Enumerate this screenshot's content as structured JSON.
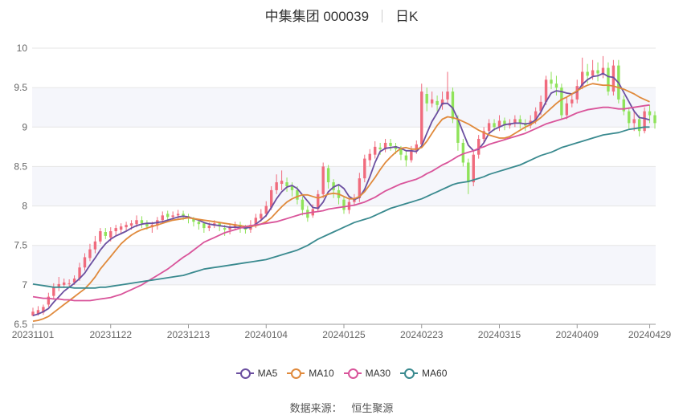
{
  "header": {
    "title": "中集集团 000039",
    "period": "日K"
  },
  "source": {
    "label": "数据来源：",
    "value": "恒生聚源"
  },
  "colors": {
    "up": "#f06b7d",
    "down": "#8fe35a",
    "grid": "#e6e6e6",
    "band": "#f5f6fb",
    "axis": "#666666"
  },
  "chart_data": {
    "type": "candlestick",
    "ylim": [
      6.5,
      10.0
    ],
    "yticks": [
      "6.5",
      "7",
      "7.5",
      "8",
      "8.5",
      "9",
      "9.5",
      "10"
    ],
    "xticks": [
      {
        "label": "20231101",
        "index": 0
      },
      {
        "label": "20231122",
        "index": 15
      },
      {
        "label": "20231213",
        "index": 30
      },
      {
        "label": "20240104",
        "index": 45
      },
      {
        "label": "20240125",
        "index": 60
      },
      {
        "label": "20240223",
        "index": 75
      },
      {
        "label": "20240315",
        "index": 90
      },
      {
        "label": "20240409",
        "index": 105
      },
      {
        "label": "20240429",
        "index": 119
      }
    ],
    "candles": [
      [
        6.61,
        6.66,
        6.6,
        6.71
      ],
      [
        6.63,
        6.68,
        6.61,
        6.73
      ],
      [
        6.65,
        6.72,
        6.62,
        6.75
      ],
      [
        6.75,
        6.85,
        6.72,
        6.9
      ],
      [
        6.86,
        6.97,
        6.82,
        7.02
      ],
      [
        6.97,
        7.01,
        6.92,
        7.1
      ],
      [
        7.0,
        7.03,
        6.96,
        7.08
      ],
      [
        7.01,
        7.02,
        6.97,
        7.07
      ],
      [
        7.03,
        7.08,
        7.0,
        7.12
      ],
      [
        7.08,
        7.22,
        7.05,
        7.28
      ],
      [
        7.22,
        7.35,
        7.18,
        7.4
      ],
      [
        7.34,
        7.45,
        7.3,
        7.52
      ],
      [
        7.45,
        7.55,
        7.4,
        7.62
      ],
      [
        7.55,
        7.68,
        7.52,
        7.72
      ],
      [
        7.67,
        7.62,
        7.58,
        7.72
      ],
      [
        7.6,
        7.68,
        7.55,
        7.73
      ],
      [
        7.68,
        7.72,
        7.62,
        7.76
      ],
      [
        7.7,
        7.74,
        7.65,
        7.78
      ],
      [
        7.73,
        7.76,
        7.68,
        7.8
      ],
      [
        7.75,
        7.78,
        7.7,
        7.82
      ],
      [
        7.77,
        7.82,
        7.73,
        7.88
      ],
      [
        7.82,
        7.78,
        7.72,
        7.87
      ],
      [
        7.78,
        7.74,
        7.7,
        7.82
      ],
      [
        7.73,
        7.76,
        7.66,
        7.8
      ],
      [
        7.75,
        7.82,
        7.7,
        7.86
      ],
      [
        7.82,
        7.88,
        7.78,
        7.93
      ],
      [
        7.9,
        7.86,
        7.8,
        7.94
      ],
      [
        7.86,
        7.88,
        7.82,
        7.93
      ],
      [
        7.88,
        7.9,
        7.84,
        7.95
      ],
      [
        7.9,
        7.87,
        7.82,
        7.94
      ],
      [
        7.87,
        7.84,
        7.78,
        7.9
      ],
      [
        7.84,
        7.8,
        7.74,
        7.86
      ],
      [
        7.8,
        7.77,
        7.7,
        7.83
      ],
      [
        7.78,
        7.72,
        7.66,
        7.8
      ],
      [
        7.72,
        7.75,
        7.68,
        7.79
      ],
      [
        7.75,
        7.78,
        7.72,
        7.82
      ],
      [
        7.78,
        7.74,
        7.68,
        7.8
      ],
      [
        7.72,
        7.7,
        7.62,
        7.76
      ],
      [
        7.7,
        7.74,
        7.64,
        7.78
      ],
      [
        7.73,
        7.77,
        7.7,
        7.8
      ],
      [
        7.76,
        7.72,
        7.66,
        7.8
      ],
      [
        7.72,
        7.7,
        7.65,
        7.76
      ],
      [
        7.7,
        7.76,
        7.66,
        7.82
      ],
      [
        7.76,
        7.85,
        7.72,
        7.9
      ],
      [
        7.84,
        7.9,
        7.8,
        7.96
      ],
      [
        7.9,
        8.0,
        7.86,
        8.06
      ],
      [
        7.98,
        8.2,
        7.95,
        8.25
      ],
      [
        8.2,
        8.3,
        8.15,
        8.4
      ],
      [
        8.28,
        8.32,
        8.2,
        8.45
      ],
      [
        8.3,
        8.25,
        8.18,
        8.36
      ],
      [
        8.25,
        8.2,
        8.12,
        8.3
      ],
      [
        8.2,
        8.08,
        8.02,
        8.25
      ],
      [
        8.08,
        7.95,
        7.88,
        8.12
      ],
      [
        7.95,
        7.85,
        7.8,
        8.0
      ],
      [
        7.88,
        7.96,
        7.85,
        8.02
      ],
      [
        7.96,
        8.15,
        7.92,
        8.2
      ],
      [
        8.15,
        8.5,
        8.1,
        8.55
      ],
      [
        8.48,
        8.3,
        8.22,
        8.52
      ],
      [
        8.3,
        8.2,
        8.1,
        8.34
      ],
      [
        8.2,
        8.1,
        8.02,
        8.26
      ],
      [
        8.08,
        7.95,
        7.9,
        8.12
      ],
      [
        7.95,
        8.05,
        7.9,
        8.1
      ],
      [
        8.05,
        8.1,
        8.0,
        8.15
      ],
      [
        8.1,
        8.35,
        8.05,
        8.42
      ],
      [
        8.35,
        8.6,
        8.3,
        8.65
      ],
      [
        8.58,
        8.66,
        8.5,
        8.72
      ],
      [
        8.65,
        8.75,
        8.6,
        8.82
      ],
      [
        8.74,
        8.72,
        8.65,
        8.8
      ],
      [
        8.72,
        8.8,
        8.68,
        8.85
      ],
      [
        8.8,
        8.76,
        8.7,
        8.85
      ],
      [
        8.76,
        8.72,
        8.66,
        8.8
      ],
      [
        8.72,
        8.65,
        8.58,
        8.76
      ],
      [
        8.64,
        8.58,
        8.5,
        8.7
      ],
      [
        8.58,
        8.7,
        8.55,
        8.76
      ],
      [
        8.7,
        8.78,
        8.66,
        8.83
      ],
      [
        8.78,
        9.45,
        8.75,
        9.55
      ],
      [
        9.42,
        9.3,
        9.2,
        9.5
      ],
      [
        9.3,
        9.35,
        9.25,
        9.45
      ],
      [
        9.33,
        9.28,
        9.2,
        9.4
      ],
      [
        9.28,
        9.35,
        9.22,
        9.45
      ],
      [
        9.35,
        9.45,
        9.3,
        9.7
      ],
      [
        9.45,
        9.1,
        9.05,
        9.5
      ],
      [
        9.1,
        8.8,
        8.7,
        9.15
      ],
      [
        8.8,
        8.55,
        8.5,
        8.85
      ],
      [
        8.55,
        8.3,
        8.15,
        8.6
      ],
      [
        8.3,
        8.65,
        8.25,
        8.7
      ],
      [
        8.65,
        8.85,
        8.6,
        8.9
      ],
      [
        8.85,
        8.95,
        8.8,
        9.0
      ],
      [
        8.95,
        9.05,
        8.9,
        9.1
      ],
      [
        9.05,
        9.0,
        8.95,
        9.1
      ],
      [
        9.0,
        9.08,
        8.95,
        9.15
      ],
      [
        9.08,
        9.02,
        8.96,
        9.12
      ],
      [
        9.02,
        9.05,
        8.98,
        9.1
      ],
      [
        9.05,
        9.1,
        9.0,
        9.15
      ],
      [
        9.1,
        9.05,
        8.98,
        9.15
      ],
      [
        9.05,
        9.02,
        8.95,
        9.1
      ],
      [
        9.02,
        9.08,
        8.98,
        9.15
      ],
      [
        9.08,
        9.2,
        9.04,
        9.25
      ],
      [
        9.2,
        9.32,
        9.15,
        9.4
      ],
      [
        9.32,
        9.6,
        9.28,
        9.65
      ],
      [
        9.6,
        9.55,
        9.48,
        9.7
      ],
      [
        9.55,
        9.5,
        9.4,
        9.65
      ],
      [
        9.5,
        9.15,
        9.1,
        9.55
      ],
      [
        9.15,
        9.3,
        9.1,
        9.38
      ],
      [
        9.3,
        9.35,
        9.25,
        9.42
      ],
      [
        9.35,
        9.52,
        9.3,
        9.6
      ],
      [
        9.52,
        9.7,
        9.48,
        9.88
      ],
      [
        9.7,
        9.65,
        9.55,
        9.8
      ],
      [
        9.65,
        9.72,
        9.6,
        9.85
      ],
      [
        9.72,
        9.68,
        9.58,
        9.82
      ],
      [
        9.68,
        9.75,
        9.62,
        9.9
      ],
      [
        9.75,
        9.45,
        9.4,
        9.82
      ],
      [
        9.45,
        9.78,
        9.4,
        9.85
      ],
      [
        9.78,
        9.35,
        9.3,
        9.85
      ],
      [
        9.35,
        9.2,
        9.15,
        9.4
      ],
      [
        9.2,
        9.05,
        8.98,
        9.25
      ],
      [
        9.05,
        9.1,
        8.95,
        9.2
      ],
      [
        9.1,
        8.95,
        8.88,
        9.15
      ],
      [
        8.95,
        9.2,
        8.92,
        9.25
      ],
      [
        9.2,
        9.15,
        9.05,
        9.28
      ],
      [
        9.15,
        9.05,
        8.98,
        9.2
      ]
    ],
    "series": [
      {
        "name": "MA5",
        "color": "#6b4fa0",
        "values": [
          6.61,
          6.63,
          6.66,
          6.7,
          6.78,
          6.85,
          6.92,
          6.97,
          7.02,
          7.08,
          7.15,
          7.25,
          7.34,
          7.44,
          7.52,
          7.58,
          7.62,
          7.65,
          7.68,
          7.72,
          7.75,
          7.77,
          7.78,
          7.78,
          7.79,
          7.8,
          7.82,
          7.84,
          7.86,
          7.87,
          7.86,
          7.84,
          7.82,
          7.79,
          7.77,
          7.76,
          7.75,
          7.74,
          7.73,
          7.73,
          7.73,
          7.72,
          7.73,
          7.77,
          7.82,
          7.88,
          7.98,
          8.09,
          8.18,
          8.24,
          8.26,
          8.22,
          8.14,
          8.06,
          7.98,
          7.97,
          8.05,
          8.18,
          8.24,
          8.27,
          8.22,
          8.12,
          8.08,
          8.11,
          8.21,
          8.37,
          8.55,
          8.69,
          8.73,
          8.74,
          8.75,
          8.73,
          8.7,
          8.7,
          8.69,
          8.76,
          8.92,
          9.07,
          9.18,
          9.3,
          9.3,
          9.24,
          9.1,
          8.93,
          8.77,
          8.7,
          8.72,
          8.8,
          8.92,
          8.97,
          9.0,
          9.03,
          9.04,
          9.05,
          9.05,
          9.04,
          9.05,
          9.09,
          9.19,
          9.32,
          9.43,
          9.46,
          9.45,
          9.43,
          9.42,
          9.45,
          9.54,
          9.6,
          9.64,
          9.65,
          9.68,
          9.64,
          9.63,
          9.56,
          9.44,
          9.32,
          9.2,
          9.12,
          9.11,
          9.09
        ]
      },
      {
        "name": "MA10",
        "color": "#e08a3c",
        "values": [
          6.54,
          6.55,
          6.57,
          6.6,
          6.65,
          6.7,
          6.75,
          6.8,
          6.85,
          6.9,
          6.95,
          7.02,
          7.1,
          7.2,
          7.28,
          7.36,
          7.44,
          7.52,
          7.58,
          7.63,
          7.67,
          7.7,
          7.72,
          7.74,
          7.76,
          7.78,
          7.8,
          7.82,
          7.83,
          7.84,
          7.85,
          7.84,
          7.83,
          7.82,
          7.81,
          7.8,
          7.79,
          7.78,
          7.77,
          7.76,
          7.75,
          7.74,
          7.74,
          7.75,
          7.77,
          7.8,
          7.85,
          7.92,
          7.99,
          8.05,
          8.09,
          8.12,
          8.14,
          8.14,
          8.12,
          8.1,
          8.12,
          8.15,
          8.16,
          8.15,
          8.12,
          8.09,
          8.09,
          8.12,
          8.18,
          8.27,
          8.36,
          8.46,
          8.55,
          8.62,
          8.68,
          8.73,
          8.74,
          8.72,
          8.72,
          8.74,
          8.82,
          8.92,
          9.02,
          9.1,
          9.13,
          9.12,
          9.1,
          9.07,
          9.04,
          9.0,
          8.96,
          8.93,
          8.9,
          8.88,
          8.86,
          8.86,
          8.88,
          8.92,
          8.96,
          9.0,
          9.03,
          9.07,
          9.12,
          9.18,
          9.24,
          9.3,
          9.35,
          9.38,
          9.42,
          9.46,
          9.5,
          9.53,
          9.55,
          9.54,
          9.53,
          9.53,
          9.52,
          9.5,
          9.48,
          9.45,
          9.42,
          9.38,
          9.35,
          9.32
        ]
      },
      {
        "name": "MA30",
        "color": "#d9549a",
        "values": [
          6.85,
          6.84,
          6.83,
          6.83,
          6.82,
          6.82,
          6.81,
          6.81,
          6.8,
          6.8,
          6.8,
          6.8,
          6.81,
          6.82,
          6.83,
          6.84,
          6.86,
          6.88,
          6.91,
          6.94,
          6.97,
          7.0,
          7.04,
          7.08,
          7.12,
          7.16,
          7.2,
          7.25,
          7.3,
          7.35,
          7.39,
          7.44,
          7.49,
          7.54,
          7.57,
          7.6,
          7.63,
          7.66,
          7.68,
          7.7,
          7.72,
          7.74,
          7.75,
          7.76,
          7.77,
          7.78,
          7.79,
          7.8,
          7.82,
          7.84,
          7.86,
          7.88,
          7.9,
          7.91,
          7.92,
          7.93,
          7.94,
          7.96,
          7.97,
          7.98,
          7.99,
          8.0,
          8.01,
          8.03,
          8.05,
          8.08,
          8.11,
          8.15,
          8.19,
          8.22,
          8.25,
          8.28,
          8.3,
          8.32,
          8.34,
          8.37,
          8.41,
          8.44,
          8.48,
          8.52,
          8.55,
          8.59,
          8.63,
          8.66,
          8.68,
          8.7,
          8.73,
          8.75,
          8.78,
          8.8,
          8.82,
          8.84,
          8.86,
          8.88,
          8.9,
          8.92,
          8.95,
          8.98,
          9.01,
          9.04,
          9.06,
          9.08,
          9.1,
          9.12,
          9.15,
          9.18,
          9.2,
          9.22,
          9.23,
          9.24,
          9.25,
          9.25,
          9.24,
          9.23,
          9.23,
          9.24,
          9.25,
          9.26,
          9.27,
          9.28
        ]
      },
      {
        "name": "MA60",
        "color": "#3a8a8f",
        "values": [
          7.01,
          7.0,
          6.99,
          6.98,
          6.97,
          6.97,
          6.97,
          6.97,
          6.96,
          6.96,
          6.96,
          6.96,
          6.96,
          6.97,
          6.97,
          6.98,
          6.99,
          7.0,
          7.01,
          7.02,
          7.03,
          7.04,
          7.05,
          7.06,
          7.07,
          7.08,
          7.09,
          7.1,
          7.11,
          7.12,
          7.14,
          7.16,
          7.18,
          7.2,
          7.21,
          7.22,
          7.23,
          7.24,
          7.25,
          7.26,
          7.27,
          7.28,
          7.29,
          7.3,
          7.31,
          7.32,
          7.34,
          7.36,
          7.38,
          7.4,
          7.42,
          7.44,
          7.47,
          7.5,
          7.54,
          7.58,
          7.61,
          7.64,
          7.67,
          7.7,
          7.73,
          7.76,
          7.79,
          7.81,
          7.83,
          7.85,
          7.88,
          7.91,
          7.94,
          7.97,
          7.99,
          8.01,
          8.03,
          8.05,
          8.07,
          8.09,
          8.12,
          8.15,
          8.18,
          8.21,
          8.24,
          8.27,
          8.29,
          8.3,
          8.31,
          8.33,
          8.35,
          8.37,
          8.4,
          8.42,
          8.44,
          8.46,
          8.48,
          8.5,
          8.52,
          8.55,
          8.58,
          8.61,
          8.64,
          8.66,
          8.68,
          8.71,
          8.74,
          8.76,
          8.78,
          8.8,
          8.82,
          8.84,
          8.86,
          8.88,
          8.9,
          8.91,
          8.92,
          8.93,
          8.95,
          8.97,
          8.98,
          8.99,
          9.0,
          9.0
        ]
      }
    ]
  }
}
